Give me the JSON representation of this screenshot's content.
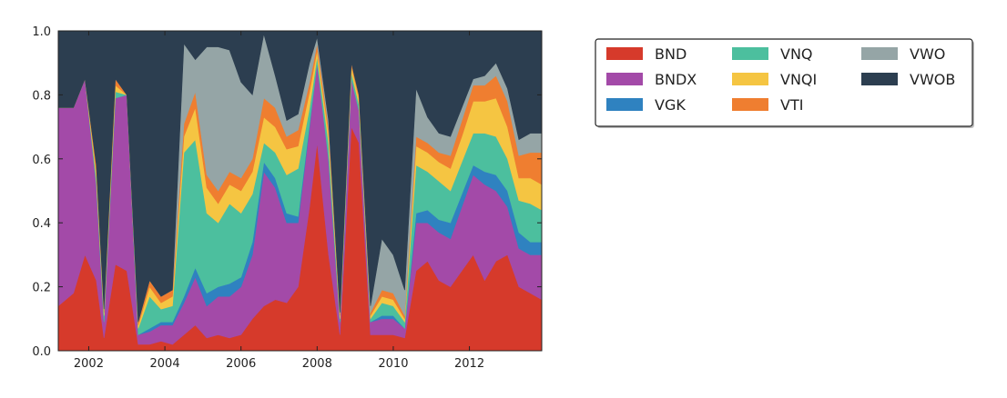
{
  "chart_data": {
    "type": "area",
    "stacked": true,
    "normalized": true,
    "title": "",
    "xlabel": "",
    "ylabel": "",
    "xlim": [
      2001.2,
      2013.9
    ],
    "ylim": [
      0,
      1
    ],
    "x_ticks": [
      2002,
      2004,
      2006,
      2008,
      2010,
      2012
    ],
    "x_tick_labels": [
      "2002",
      "2004",
      "2006",
      "2008",
      "2010",
      "2012"
    ],
    "y_ticks": [
      0,
      0.2,
      0.4,
      0.6,
      0.8,
      1.0
    ],
    "y_tick_labels": [
      "0.0",
      "0.2",
      "0.4",
      "0.6",
      "0.8",
      "1.0"
    ],
    "grid": false,
    "legend_position": "outside-right-top",
    "legend_columns": 3,
    "x": [
      2001.2,
      2001.6,
      2001.9,
      2002.2,
      2002.4,
      2002.7,
      2003.0,
      2003.3,
      2003.6,
      2003.9,
      2004.2,
      2004.5,
      2004.8,
      2005.1,
      2005.4,
      2005.7,
      2006.0,
      2006.3,
      2006.6,
      2006.9,
      2007.2,
      2007.5,
      2007.8,
      2008.0,
      2008.3,
      2008.6,
      2008.9,
      2009.1,
      2009.4,
      2009.7,
      2010.0,
      2010.3,
      2010.6,
      2010.9,
      2011.2,
      2011.5,
      2011.8,
      2012.1,
      2012.4,
      2012.7,
      2013.0,
      2013.3,
      2013.6,
      2013.9
    ],
    "series": [
      {
        "name": "BND",
        "color": "#d63a2b",
        "values": [
          0.14,
          0.18,
          0.3,
          0.22,
          0.04,
          0.27,
          0.25,
          0.02,
          0.02,
          0.03,
          0.02,
          0.05,
          0.08,
          0.04,
          0.05,
          0.04,
          0.05,
          0.1,
          0.14,
          0.16,
          0.15,
          0.2,
          0.45,
          0.65,
          0.3,
          0.05,
          0.7,
          0.65,
          0.05,
          0.05,
          0.05,
          0.04,
          0.25,
          0.28,
          0.22,
          0.2,
          0.25,
          0.3,
          0.22,
          0.28,
          0.3,
          0.2,
          0.18,
          0.16
        ]
      },
      {
        "name": "BNDX",
        "color": "#a34aa8",
        "values": [
          0.62,
          0.58,
          0.55,
          0.3,
          0.05,
          0.52,
          0.55,
          0.03,
          0.04,
          0.05,
          0.06,
          0.1,
          0.15,
          0.1,
          0.12,
          0.13,
          0.15,
          0.2,
          0.42,
          0.35,
          0.25,
          0.2,
          0.25,
          0.25,
          0.3,
          0.04,
          0.15,
          0.1,
          0.04,
          0.05,
          0.05,
          0.03,
          0.15,
          0.12,
          0.15,
          0.15,
          0.2,
          0.25,
          0.3,
          0.22,
          0.15,
          0.12,
          0.12,
          0.14
        ]
      },
      {
        "name": "VGK",
        "color": "#2f82c0",
        "values": [
          0.0,
          0.0,
          0.0,
          0.0,
          0.0,
          0.0,
          0.0,
          0.0,
          0.01,
          0.01,
          0.01,
          0.02,
          0.03,
          0.04,
          0.03,
          0.04,
          0.03,
          0.04,
          0.03,
          0.03,
          0.03,
          0.02,
          0.01,
          0.0,
          0.0,
          0.0,
          0.0,
          0.0,
          0.0,
          0.01,
          0.01,
          0.0,
          0.03,
          0.04,
          0.04,
          0.05,
          0.04,
          0.03,
          0.04,
          0.05,
          0.05,
          0.05,
          0.04,
          0.04
        ]
      },
      {
        "name": "VNQ",
        "color": "#4cbf9e",
        "values": [
          0.0,
          0.0,
          0.0,
          0.02,
          0.02,
          0.02,
          0.0,
          0.02,
          0.1,
          0.04,
          0.05,
          0.45,
          0.4,
          0.25,
          0.2,
          0.25,
          0.2,
          0.15,
          0.06,
          0.08,
          0.12,
          0.15,
          0.05,
          0.02,
          0.05,
          0.01,
          0.02,
          0.02,
          0.01,
          0.04,
          0.03,
          0.02,
          0.15,
          0.12,
          0.12,
          0.1,
          0.1,
          0.1,
          0.12,
          0.12,
          0.1,
          0.1,
          0.12,
          0.1
        ]
      },
      {
        "name": "VNQI",
        "color": "#f5c542",
        "values": [
          0.0,
          0.0,
          0.0,
          0.02,
          0.01,
          0.02,
          0.0,
          0.01,
          0.03,
          0.02,
          0.03,
          0.05,
          0.1,
          0.08,
          0.06,
          0.06,
          0.07,
          0.07,
          0.08,
          0.08,
          0.08,
          0.07,
          0.05,
          0.02,
          0.03,
          0.01,
          0.02,
          0.02,
          0.01,
          0.02,
          0.02,
          0.01,
          0.06,
          0.06,
          0.06,
          0.07,
          0.08,
          0.1,
          0.1,
          0.12,
          0.1,
          0.07,
          0.08,
          0.08
        ]
      },
      {
        "name": "VTI",
        "color": "#ef7e30",
        "values": [
          0.0,
          0.0,
          0.0,
          0.02,
          0.01,
          0.02,
          0.0,
          0.01,
          0.02,
          0.02,
          0.02,
          0.04,
          0.05,
          0.04,
          0.04,
          0.04,
          0.04,
          0.04,
          0.06,
          0.06,
          0.04,
          0.05,
          0.03,
          0.02,
          0.02,
          0.01,
          0.01,
          0.01,
          0.01,
          0.02,
          0.02,
          0.01,
          0.03,
          0.03,
          0.03,
          0.04,
          0.05,
          0.05,
          0.05,
          0.07,
          0.08,
          0.07,
          0.08,
          0.1
        ]
      },
      {
        "name": "VWO",
        "color": "#95a5a6",
        "values": [
          0.0,
          0.0,
          0.0,
          0.0,
          0.0,
          0.0,
          0.0,
          0.0,
          0.0,
          0.0,
          0.0,
          0.25,
          0.1,
          0.4,
          0.45,
          0.38,
          0.3,
          0.2,
          0.2,
          0.1,
          0.05,
          0.05,
          0.06,
          0.02,
          0.02,
          0.0,
          0.0,
          0.0,
          0.02,
          0.16,
          0.12,
          0.08,
          0.15,
          0.08,
          0.06,
          0.06,
          0.04,
          0.02,
          0.03,
          0.04,
          0.04,
          0.05,
          0.06,
          0.06
        ]
      },
      {
        "name": "VWOB",
        "color": "#2c3e50",
        "values": [
          0.24,
          0.24,
          0.15,
          0.42,
          0.87,
          0.15,
          0.2,
          0.91,
          0.78,
          0.83,
          0.81,
          0.04,
          0.09,
          0.05,
          0.05,
          0.06,
          0.16,
          0.2,
          0.01,
          0.14,
          0.28,
          0.26,
          0.1,
          0.02,
          0.28,
          0.88,
          0.1,
          0.2,
          0.86,
          0.65,
          0.7,
          0.81,
          0.18,
          0.27,
          0.32,
          0.33,
          0.24,
          0.15,
          0.14,
          0.1,
          0.18,
          0.34,
          0.32,
          0.32
        ]
      }
    ]
  }
}
